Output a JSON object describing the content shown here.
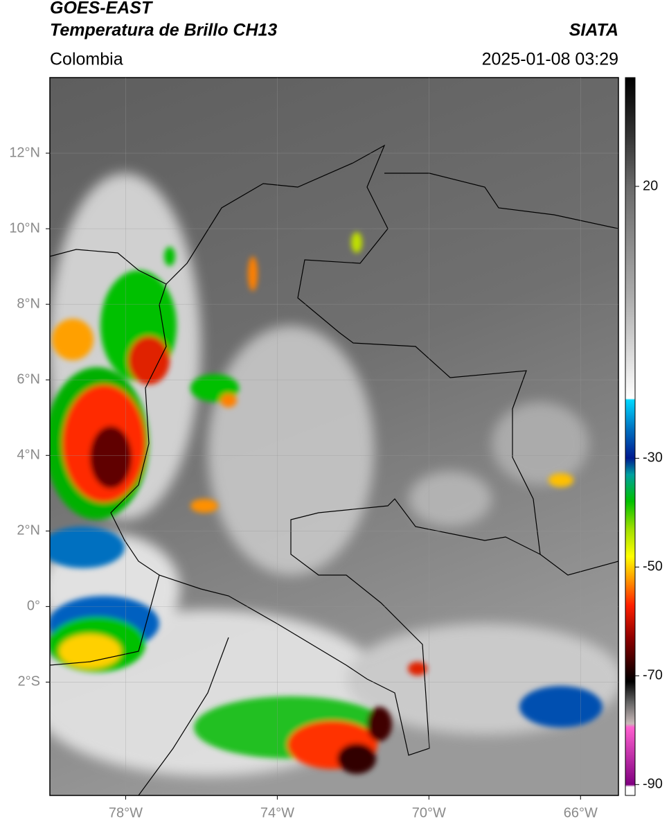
{
  "header": {
    "title_1": "GOES-EAST",
    "title_2": "Temperatura de Brillo CH13",
    "source": "SIATA",
    "region": "Colombia",
    "datetime": "2025-01-08 03:29"
  },
  "map": {
    "xlim": [
      -80,
      -65
    ],
    "ylim": [
      -5,
      14
    ],
    "lon_ticks": [
      {
        "value": -78,
        "label": "78°W"
      },
      {
        "value": -74,
        "label": "74°W"
      },
      {
        "value": -70,
        "label": "70°W"
      },
      {
        "value": -66,
        "label": "66°W"
      }
    ],
    "lat_ticks": [
      {
        "value": 12,
        "label": "12°N"
      },
      {
        "value": 10,
        "label": "10°N"
      },
      {
        "value": 8,
        "label": "8°N"
      },
      {
        "value": 6,
        "label": "6°N"
      },
      {
        "value": 4,
        "label": "4°N"
      },
      {
        "value": 2,
        "label": "2°N"
      },
      {
        "value": 0,
        "label": "0°"
      },
      {
        "value": -2,
        "label": "2°S"
      }
    ],
    "grid": true
  },
  "colorbar": {
    "range": [
      -92,
      40
    ],
    "ticks": [
      20,
      -30,
      -50,
      -70,
      -90
    ]
  }
}
